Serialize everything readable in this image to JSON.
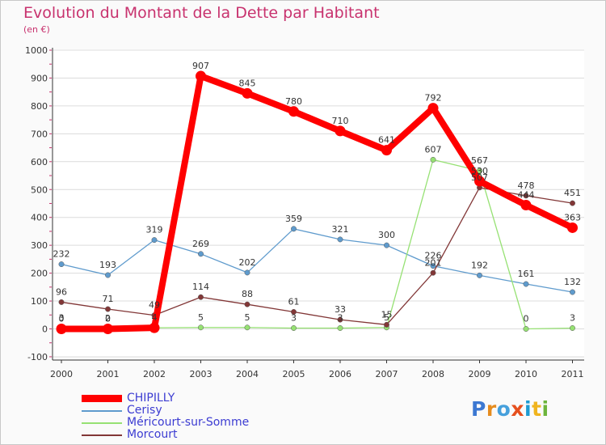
{
  "title": "Evolution du Montant de la Dette par Habitant",
  "subtitle": "(en €)",
  "logo_text": "Proxiti",
  "chart_data": {
    "type": "line",
    "categories": [
      "2000",
      "2001",
      "2002",
      "2003",
      "2004",
      "2005",
      "2006",
      "2007",
      "2008",
      "2009",
      "2010",
      "2011"
    ],
    "ylim": [
      -100,
      1000
    ],
    "yticks": [
      "-100",
      "0",
      "100",
      "200",
      "300",
      "400",
      "500",
      "600",
      "700",
      "800",
      "900",
      "1000"
    ],
    "grid": "horizontal",
    "legend_position": "bottom-left",
    "series": [
      {
        "name": "CHIPILLY",
        "color": "#ff0000",
        "values": [
          0,
          0,
          4,
          907,
          845,
          780,
          710,
          641,
          792,
          530,
          444,
          363
        ],
        "labels": [
          "0",
          "0",
          "",
          "907",
          "845",
          "780",
          "710",
          "641",
          "792",
          "530",
          "444",
          "363"
        ]
      },
      {
        "name": "Cerisy",
        "color": "#5f9bcd",
        "values": [
          232,
          193,
          319,
          269,
          202,
          359,
          321,
          300,
          226,
          192,
          161,
          132
        ],
        "labels": [
          "232",
          "193",
          "319",
          "269",
          "202",
          "359",
          "321",
          "300",
          "226",
          "192",
          "161",
          "132"
        ]
      },
      {
        "name": "Méricourt-sur-Somme",
        "color": "#96e173",
        "values": [
          3,
          2,
          4,
          5,
          5,
          3,
          3,
          5,
          607,
          567,
          0,
          3
        ],
        "labels": [
          "3",
          "2",
          "4",
          "5",
          "5",
          "3",
          "3",
          "5",
          "607",
          "567",
          "0",
          "3"
        ]
      },
      {
        "name": "Morcourt",
        "color": "#823737",
        "values": [
          96,
          71,
          49,
          114,
          88,
          61,
          33,
          15,
          201,
          507,
          478,
          451
        ],
        "labels": [
          "96",
          "71",
          "49",
          "114",
          "88",
          "61",
          "33",
          "15",
          "201",
          "507",
          "478",
          "451"
        ]
      }
    ]
  }
}
